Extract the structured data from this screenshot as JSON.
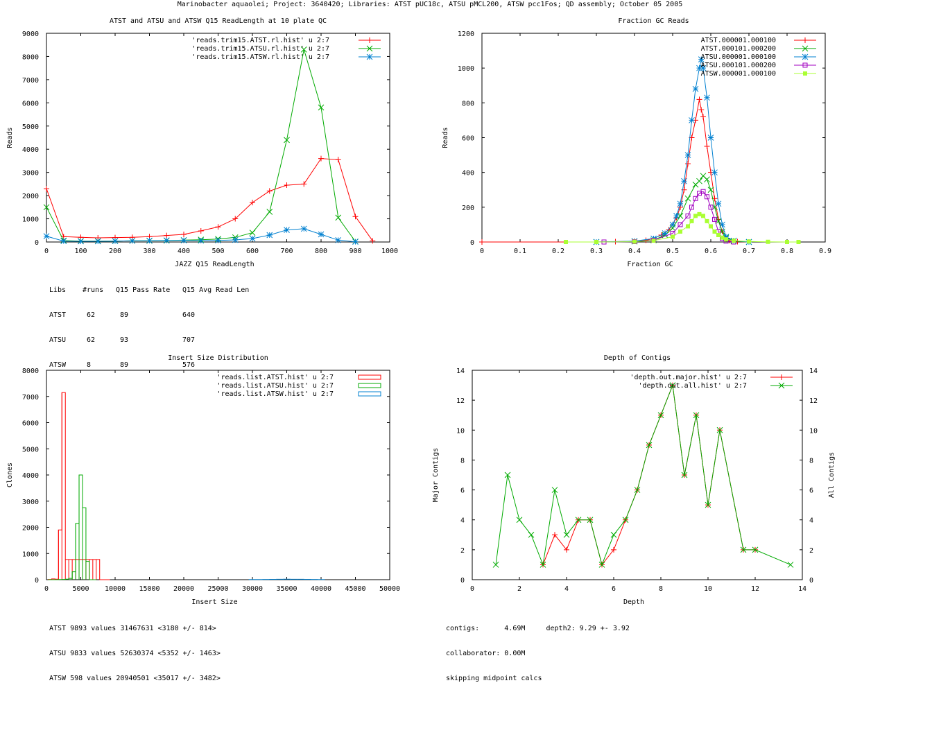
{
  "page_title": "Marinobacter aquaolei; Project: 3640420; Libraries: ATST pUC18c, ATSU pMCL200, ATSW pcc1Fos; QD assembly; October 05 2005",
  "chart_data": [
    {
      "id": "readlength",
      "type": "line",
      "title": "ATST and ATSU and ATSW Q15 ReadLength at 10 plate QC",
      "xlabel": "JAZZ Q15 ReadLength",
      "ylabel": "Reads",
      "xlim": [
        0,
        1000
      ],
      "ylim": [
        0,
        9000
      ],
      "xticks": [
        0,
        100,
        200,
        300,
        400,
        500,
        600,
        700,
        800,
        900,
        1000
      ],
      "yticks": [
        0,
        1000,
        2000,
        3000,
        4000,
        5000,
        6000,
        7000,
        8000,
        9000
      ],
      "legend_position": "top-right",
      "series": [
        {
          "name": "'reads.trim15.ATST.rl.hist' u 2:7",
          "color": "#ff0000",
          "marker": "plus",
          "x": [
            0,
            50,
            100,
            150,
            200,
            250,
            300,
            350,
            400,
            450,
            500,
            550,
            600,
            650,
            700,
            750,
            800,
            850,
            900,
            950
          ],
          "y": [
            2300,
            230,
            200,
            180,
            190,
            200,
            230,
            280,
            330,
            480,
            650,
            1000,
            1700,
            2200,
            2450,
            2500,
            3600,
            3550,
            1100,
            50
          ]
        },
        {
          "name": "'reads.trim15.ATSU.rl.hist' u 2:7",
          "color": "#00aa00",
          "marker": "x",
          "x": [
            0,
            50,
            100,
            150,
            200,
            250,
            300,
            350,
            400,
            450,
            500,
            550,
            600,
            650,
            700,
            750,
            800,
            850,
            900
          ],
          "y": [
            1500,
            60,
            40,
            40,
            40,
            50,
            50,
            60,
            80,
            100,
            130,
            200,
            400,
            1300,
            4400,
            8300,
            5800,
            1050,
            20
          ]
        },
        {
          "name": "'reads.trim15.ATSW.rl.hist' u 2:7",
          "color": "#0080d0",
          "marker": "star",
          "x": [
            0,
            50,
            100,
            150,
            200,
            250,
            300,
            350,
            400,
            450,
            500,
            550,
            600,
            650,
            700,
            750,
            800,
            850,
            900
          ],
          "y": [
            250,
            40,
            30,
            30,
            40,
            50,
            60,
            70,
            70,
            60,
            70,
            90,
            150,
            300,
            520,
            570,
            330,
            80,
            10
          ]
        }
      ]
    },
    {
      "id": "gc",
      "type": "line",
      "title": "Fraction GC Reads",
      "xlabel": "Fraction GC",
      "ylabel": "Reads",
      "xlim": [
        0,
        0.9
      ],
      "ylim": [
        0,
        1200
      ],
      "xticks": [
        0,
        0.1,
        0.2,
        0.3,
        0.4,
        0.5,
        0.6,
        0.7,
        0.8,
        0.9
      ],
      "yticks": [
        0,
        200,
        400,
        600,
        800,
        1000,
        1200
      ],
      "legend_position": "top-right",
      "series": [
        {
          "name": "ATST.000001.000100",
          "color": "#ff0000",
          "marker": "plus",
          "x": [
            0,
            0.3,
            0.35,
            0.4,
            0.43,
            0.45,
            0.47,
            0.49,
            0.5,
            0.51,
            0.52,
            0.53,
            0.54,
            0.55,
            0.56,
            0.57,
            0.575,
            0.58,
            0.59,
            0.6,
            0.61,
            0.62,
            0.63,
            0.64,
            0.65,
            0.67,
            0.7
          ],
          "y": [
            0,
            0,
            2,
            5,
            10,
            20,
            40,
            70,
            100,
            140,
            200,
            300,
            450,
            600,
            700,
            820,
            760,
            720,
            550,
            400,
            250,
            130,
            60,
            20,
            8,
            2,
            0
          ]
        },
        {
          "name": "ATST.000101.000200",
          "color": "#00aa00",
          "marker": "x",
          "x": [
            0.3,
            0.4,
            0.45,
            0.48,
            0.5,
            0.52,
            0.54,
            0.56,
            0.57,
            0.58,
            0.59,
            0.6,
            0.61,
            0.62,
            0.63,
            0.64,
            0.66,
            0.7
          ],
          "y": [
            0,
            3,
            10,
            40,
            80,
            150,
            250,
            330,
            350,
            380,
            360,
            300,
            200,
            120,
            60,
            25,
            5,
            0
          ]
        },
        {
          "name": "ATSU.000001.000100",
          "color": "#0080d0",
          "marker": "star",
          "x": [
            0.3,
            0.4,
            0.45,
            0.48,
            0.5,
            0.51,
            0.52,
            0.53,
            0.54,
            0.55,
            0.56,
            0.57,
            0.575,
            0.58,
            0.59,
            0.6,
            0.61,
            0.62,
            0.63,
            0.64,
            0.66,
            0.7
          ],
          "y": [
            0,
            5,
            20,
            50,
            100,
            150,
            220,
            350,
            500,
            700,
            880,
            1000,
            1050,
            1000,
            830,
            600,
            400,
            220,
            100,
            30,
            8,
            0
          ]
        },
        {
          "name": "ATSU.000101.000200",
          "color": "#a000c0",
          "marker": "square",
          "x": [
            0.32,
            0.4,
            0.45,
            0.5,
            0.52,
            0.54,
            0.55,
            0.56,
            0.57,
            0.58,
            0.59,
            0.6,
            0.61,
            0.62,
            0.63,
            0.64,
            0.66
          ],
          "y": [
            0,
            2,
            10,
            50,
            100,
            150,
            200,
            250,
            280,
            290,
            260,
            200,
            130,
            60,
            20,
            5,
            0
          ]
        },
        {
          "name": "ATSW.000001.000100",
          "color": "#aaff33",
          "marker": "filled-square",
          "x": [
            0.22,
            0.3,
            0.4,
            0.45,
            0.5,
            0.52,
            0.54,
            0.55,
            0.56,
            0.57,
            0.58,
            0.59,
            0.6,
            0.61,
            0.62,
            0.63,
            0.64,
            0.66,
            0.7,
            0.75,
            0.8,
            0.83
          ],
          "y": [
            0,
            0,
            2,
            8,
            30,
            60,
            90,
            120,
            150,
            160,
            150,
            120,
            90,
            60,
            40,
            25,
            15,
            8,
            3,
            1,
            0,
            0
          ]
        }
      ]
    },
    {
      "id": "insert",
      "type": "histogram",
      "title": "Insert Size Distribution",
      "xlabel": "Insert Size",
      "ylabel": "Clones",
      "xlim": [
        0,
        50000
      ],
      "ylim": [
        0,
        8000
      ],
      "xticks": [
        0,
        5000,
        10000,
        15000,
        20000,
        25000,
        30000,
        35000,
        40000,
        45000,
        50000
      ],
      "yticks": [
        0,
        1000,
        2000,
        3000,
        4000,
        5000,
        6000,
        7000,
        8000
      ],
      "legend_position": "top-right",
      "series": [
        {
          "name": "'reads.list.ATST.hist' u 2:7",
          "color": "#ff0000",
          "x": [
            500,
            1000,
            1500,
            2000,
            2500,
            3000,
            3500,
            4000,
            4500,
            5000,
            5500,
            6000,
            6500,
            7000,
            7500,
            8000,
            8500,
            9000
          ],
          "y": [
            10,
            30,
            20,
            1900,
            7150,
            770,
            770,
            770,
            770,
            770,
            770,
            770,
            770,
            770,
            770,
            0,
            0,
            0
          ]
        },
        {
          "name": "'reads.list.ATSU.hist' u 2:7",
          "color": "#00aa00",
          "x": [
            500,
            1000,
            1500,
            2000,
            2500,
            3000,
            3500,
            4000,
            4500,
            5000,
            5500,
            6000,
            6500,
            7000
          ],
          "y": [
            0,
            0,
            0,
            5,
            10,
            20,
            50,
            300,
            2150,
            4000,
            2750,
            700,
            0,
            0
          ]
        },
        {
          "name": "'reads.list.ATSW.hist' u 2:7",
          "color": "#0080d0",
          "x": [
            30000,
            31000,
            32000,
            33000,
            34000,
            35000,
            36000,
            37000,
            38000,
            39000,
            40000
          ],
          "y": [
            5,
            8,
            10,
            12,
            15,
            20,
            18,
            15,
            12,
            10,
            5
          ]
        }
      ]
    },
    {
      "id": "depth",
      "type": "line",
      "title": "Depth of Contigs",
      "xlabel": "Depth",
      "ylabel": "Major Contigs",
      "y2label": "All Contigs",
      "xlim": [
        0,
        14
      ],
      "ylim": [
        0,
        14
      ],
      "xticks": [
        0,
        2,
        4,
        6,
        8,
        10,
        12,
        14
      ],
      "yticks": [
        0,
        2,
        4,
        6,
        8,
        10,
        12,
        14
      ],
      "legend_position": "top-right",
      "series": [
        {
          "name": "'depth.out.major.hist' u 2:7",
          "color": "#ff0000",
          "marker": "plus",
          "x": [
            3,
            3.5,
            4,
            4.5,
            5,
            5.5,
            6,
            6.5,
            7,
            7.5,
            8,
            8.5,
            9,
            9.5,
            10,
            10.5,
            11.5,
            12
          ],
          "y": [
            1,
            3,
            2,
            4,
            4,
            1,
            2,
            4,
            6,
            9,
            11,
            13,
            7,
            11,
            5,
            10,
            2,
            2
          ]
        },
        {
          "name": "'depth.out.all.hist' u 2:7",
          "color": "#00aa00",
          "marker": "x",
          "x": [
            1,
            1.5,
            2,
            2.5,
            3,
            3.5,
            4,
            4.5,
            5,
            5.5,
            6,
            6.5,
            7,
            7.5,
            8,
            8.5,
            9,
            9.5,
            10,
            10.5,
            11.5,
            12,
            13.5
          ],
          "y": [
            1,
            7,
            4,
            3,
            1,
            6,
            3,
            4,
            4,
            1,
            3,
            4,
            6,
            9,
            11,
            13,
            7,
            11,
            5,
            10,
            2,
            2,
            1
          ]
        }
      ]
    }
  ],
  "notes": {
    "readlength": {
      "header": {
        "libs": "Libs",
        "runs": "#runs",
        "pass": "Q15 Pass Rate",
        "avg": "Q15 Avg Read Len"
      },
      "rows": [
        {
          "lib": "ATST",
          "runs": "62",
          "pass": "89",
          "avg": "640"
        },
        {
          "lib": "ATSU",
          "runs": "62",
          "pass": "93",
          "avg": "707"
        },
        {
          "lib": "ATSW",
          "runs": "8",
          "pass": "89",
          "avg": "576"
        }
      ]
    },
    "insert": [
      "ATST 9893 values 31467631 <3180 +/- 814>",
      "ATSU 9833 values 52630374 <5352 +/- 1463>",
      "ATSW 598 values 20940501 <35017 +/- 3482>"
    ],
    "depth": [
      "contigs:      4.69M     depth2: 9.29 +- 3.92",
      "collaborator: 0.00M",
      "skipping midpoint calcs"
    ]
  }
}
